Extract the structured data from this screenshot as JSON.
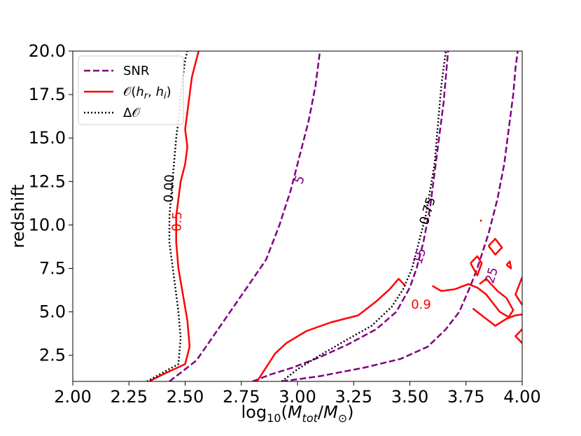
{
  "chart_data": {
    "type": "contour",
    "xlabel": "log10(Mtot/M⊙)",
    "ylabel": "redshift",
    "xlim": [
      2.0,
      4.0
    ],
    "ylim": [
      1.0,
      20.0
    ],
    "xticks": [
      "2.00",
      "2.25",
      "2.50",
      "2.75",
      "3.00",
      "3.25",
      "3.50",
      "3.75",
      "4.00"
    ],
    "yticks": [
      "2.5",
      "5.0",
      "7.5",
      "10.0",
      "12.5",
      "15.0",
      "17.5",
      "20.0"
    ],
    "legend": {
      "position": "top-left",
      "entries": [
        {
          "label": "SNR",
          "style": "dashed",
          "color": "#800080"
        },
        {
          "label": "𝒪(h_r, h_i)",
          "style": "solid",
          "color": "#ff0000"
        },
        {
          "label": "Δ𝒪",
          "style": "dotted",
          "color": "#000000"
        }
      ]
    },
    "series": [
      {
        "group": "SNR",
        "level": "5",
        "color": "#800080",
        "style": "dashed",
        "points": [
          [
            2.43,
            1.0
          ],
          [
            2.48,
            1.5
          ],
          [
            2.55,
            2.2
          ],
          [
            2.62,
            3.5
          ],
          [
            2.7,
            5.0
          ],
          [
            2.78,
            6.5
          ],
          [
            2.86,
            8.0
          ],
          [
            2.92,
            10.0
          ],
          [
            2.97,
            12.0
          ],
          [
            3.01,
            14.0
          ],
          [
            3.05,
            16.0
          ],
          [
            3.08,
            18.0
          ],
          [
            3.1,
            20.0
          ]
        ]
      },
      {
        "group": "SNR",
        "level": "15",
        "color": "#800080",
        "style": "dashed",
        "points": [
          [
            2.8,
            1.0
          ],
          [
            2.88,
            1.4
          ],
          [
            2.98,
            1.8
          ],
          [
            3.1,
            2.4
          ],
          [
            3.22,
            3.1
          ],
          [
            3.35,
            4.0
          ],
          [
            3.44,
            5.0
          ],
          [
            3.5,
            6.4
          ],
          [
            3.53,
            7.5
          ],
          [
            3.56,
            9.0
          ],
          [
            3.59,
            11.0
          ],
          [
            3.61,
            13.0
          ],
          [
            3.63,
            15.0
          ],
          [
            3.65,
            17.0
          ],
          [
            3.66,
            18.5
          ],
          [
            3.67,
            20.0
          ]
        ]
      },
      {
        "group": "SNR",
        "level": "25",
        "color": "#800080",
        "style": "dashed",
        "points": [
          [
            2.93,
            1.0
          ],
          [
            3.1,
            1.3
          ],
          [
            3.3,
            1.8
          ],
          [
            3.46,
            2.3
          ],
          [
            3.58,
            3.0
          ],
          [
            3.66,
            4.0
          ],
          [
            3.72,
            5.0
          ],
          [
            3.77,
            6.5
          ],
          [
            3.8,
            7.5
          ],
          [
            3.85,
            9.5
          ],
          [
            3.89,
            11.5
          ],
          [
            3.92,
            13.5
          ],
          [
            3.94,
            15.5
          ],
          [
            3.96,
            17.5
          ],
          [
            3.97,
            19.0
          ],
          [
            3.98,
            20.0
          ]
        ]
      },
      {
        "group": "overlap",
        "level": "0.5",
        "color": "#ff0000",
        "style": "solid",
        "points": [
          [
            2.34,
            1.0
          ],
          [
            2.4,
            1.4
          ],
          [
            2.5,
            2.0
          ],
          [
            2.52,
            3.0
          ],
          [
            2.51,
            4.5
          ],
          [
            2.49,
            6.0
          ],
          [
            2.47,
            7.5
          ],
          [
            2.46,
            9.0
          ],
          [
            2.46,
            10.5
          ],
          [
            2.47,
            11.5
          ],
          [
            2.48,
            12.5
          ],
          [
            2.5,
            13.5
          ],
          [
            2.51,
            14.5
          ],
          [
            2.5,
            15.5
          ],
          [
            2.51,
            16.5
          ],
          [
            2.52,
            17.5
          ],
          [
            2.53,
            18.5
          ],
          [
            2.55,
            19.5
          ],
          [
            2.56,
            20.0
          ]
        ]
      },
      {
        "group": "overlap",
        "level": "0.9",
        "color": "#ff0000",
        "style": "solid",
        "points": [
          [
            2.82,
            1.0
          ],
          [
            2.85,
            1.6
          ],
          [
            2.9,
            2.6
          ],
          [
            2.95,
            3.2
          ],
          [
            3.04,
            3.9
          ],
          [
            3.15,
            4.4
          ],
          [
            3.27,
            4.8
          ],
          [
            3.35,
            5.6
          ],
          [
            3.41,
            6.3
          ],
          [
            3.45,
            6.9
          ],
          [
            3.48,
            6.5
          ]
        ]
      },
      {
        "group": "overlap",
        "level": "",
        "color": "#ff0000",
        "style": "solid",
        "points": [
          [
            3.6,
            6.5
          ],
          [
            3.64,
            6.2
          ],
          [
            3.7,
            6.3
          ],
          [
            3.76,
            6.6
          ],
          [
            3.8,
            6.4
          ],
          [
            3.84,
            6.0
          ],
          [
            3.87,
            5.5
          ],
          [
            3.9,
            5.0
          ],
          [
            3.94,
            4.7
          ],
          [
            3.96,
            5.1
          ],
          [
            3.93,
            5.8
          ],
          [
            3.89,
            6.2
          ],
          [
            3.84,
            6.9
          ],
          [
            3.81,
            6.6
          ]
        ]
      },
      {
        "group": "overlap",
        "level": "",
        "color": "#ff0000",
        "style": "solid",
        "points": [
          [
            3.78,
            5.2
          ],
          [
            3.83,
            4.7
          ],
          [
            3.88,
            4.2
          ],
          [
            3.93,
            4.6
          ],
          [
            3.97,
            4.8
          ],
          [
            4.0,
            4.85
          ]
        ]
      },
      {
        "group": "overlap",
        "level": "",
        "color": "#ff0000",
        "style": "solid",
        "points": [
          [
            3.77,
            7.8
          ],
          [
            3.8,
            8.2
          ],
          [
            3.82,
            7.8
          ],
          [
            3.8,
            7.1
          ],
          [
            3.77,
            7.8
          ]
        ]
      },
      {
        "group": "overlap",
        "level": "",
        "color": "#ff0000",
        "style": "solid",
        "points": [
          [
            3.85,
            8.8
          ],
          [
            3.88,
            9.2
          ],
          [
            3.91,
            8.7
          ],
          [
            3.88,
            8.3
          ],
          [
            3.85,
            8.8
          ]
        ]
      },
      {
        "group": "overlap",
        "level": "",
        "color": "#ff0000",
        "style": "solid",
        "points": [
          [
            3.93,
            7.7
          ],
          [
            3.945,
            7.9
          ],
          [
            3.95,
            7.5
          ],
          [
            3.93,
            7.7
          ]
        ]
      },
      {
        "group": "overlap",
        "level": "",
        "color": "#ff0000",
        "style": "solid",
        "points": [
          [
            4.0,
            7.0
          ],
          [
            3.97,
            6.0
          ],
          [
            4.0,
            5.4
          ]
        ]
      },
      {
        "group": "overlap",
        "level": "",
        "color": "#ff0000",
        "style": "solid",
        "points": [
          [
            4.0,
            4.0
          ],
          [
            3.97,
            3.6
          ],
          [
            4.0,
            3.2
          ]
        ]
      },
      {
        "group": "overlap",
        "level": "",
        "color": "#ff0000",
        "style": "solid",
        "points": [
          [
            3.815,
            10.2
          ],
          [
            3.818,
            10.3
          ]
        ]
      },
      {
        "group": "delta",
        "level": "0.00",
        "color": "#000000",
        "style": "dotted",
        "points": [
          [
            2.33,
            1.0
          ],
          [
            2.4,
            1.5
          ],
          [
            2.47,
            2.0
          ],
          [
            2.48,
            3.5
          ],
          [
            2.47,
            5.0
          ],
          [
            2.45,
            7.0
          ],
          [
            2.43,
            9.0
          ],
          [
            2.43,
            10.5
          ],
          [
            2.44,
            12.0
          ],
          [
            2.45,
            13.5
          ],
          [
            2.46,
            15.0
          ],
          [
            2.47,
            16.0
          ],
          [
            2.48,
            17.5
          ],
          [
            2.49,
            18.5
          ],
          [
            2.5,
            19.5
          ],
          [
            2.51,
            20.0
          ]
        ]
      },
      {
        "group": "delta",
        "level": "0.75",
        "color": "#000000",
        "style": "dotted",
        "points": [
          [
            2.93,
            1.0
          ],
          [
            3.0,
            1.7
          ],
          [
            3.1,
            2.5
          ],
          [
            3.22,
            3.4
          ],
          [
            3.33,
            4.2
          ],
          [
            3.42,
            5.3
          ],
          [
            3.47,
            6.3
          ],
          [
            3.51,
            7.5
          ],
          [
            3.54,
            9.0
          ],
          [
            3.57,
            10.5
          ],
          [
            3.59,
            12.0
          ],
          [
            3.61,
            13.5
          ],
          [
            3.62,
            15.0
          ],
          [
            3.63,
            16.5
          ],
          [
            3.64,
            18.0
          ],
          [
            3.65,
            19.0
          ],
          [
            3.66,
            20.0
          ]
        ]
      }
    ],
    "contour_labels": [
      {
        "text": "5",
        "x": 3.01,
        "y": 12.6,
        "color": "#800080"
      },
      {
        "text": "15",
        "x": 3.545,
        "y": 8.2,
        "color": "#800080"
      },
      {
        "text": "25",
        "x": 3.865,
        "y": 7.1,
        "color": "#800080"
      },
      {
        "text": "0.5",
        "x": 2.465,
        "y": 10.2,
        "color": "#ff0000"
      },
      {
        "text": "0.9",
        "x": 3.55,
        "y": 5.4,
        "color": "#ff0000"
      },
      {
        "text": "0.00",
        "x": 2.43,
        "y": 12.1,
        "color": "#000000"
      },
      {
        "text": "0.75",
        "x": 3.58,
        "y": 10.8,
        "color": "#000000"
      }
    ]
  }
}
